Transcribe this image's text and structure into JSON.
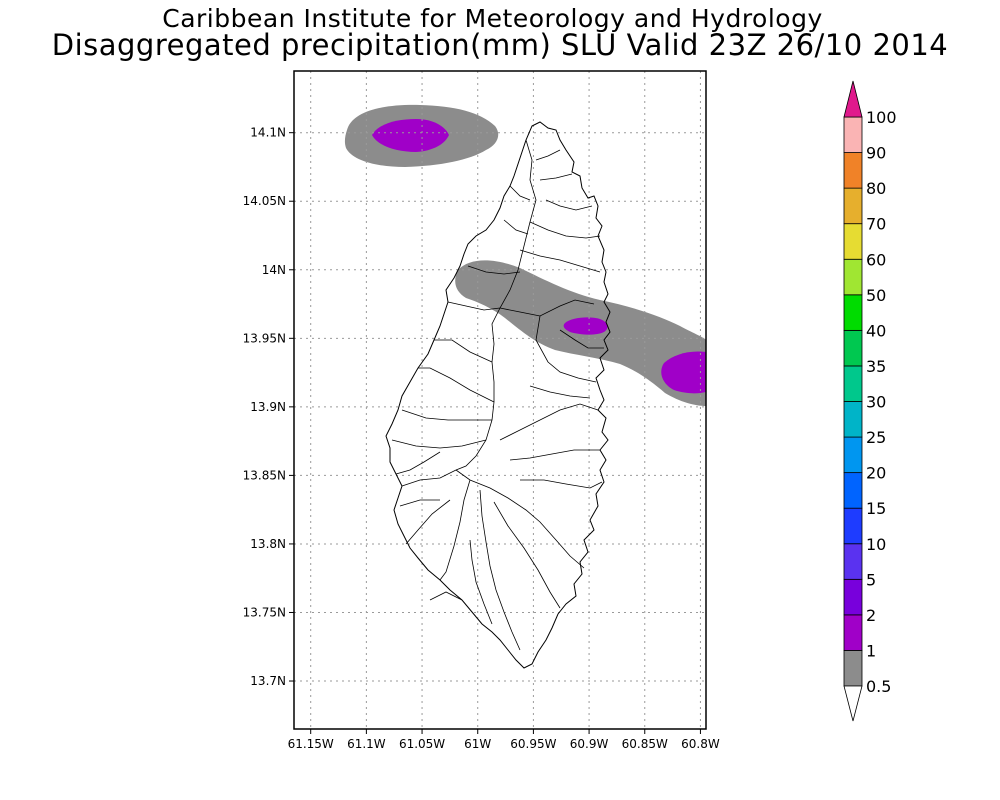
{
  "header": {
    "title": "Caribbean Institute for Meteorology and Hydrology",
    "subtitle": "Disaggregated precipitation(mm) SLU Valid 23Z 26/10 2014"
  },
  "map": {
    "lon_range": [
      -61.165,
      -60.795
    ],
    "lat_range": [
      13.665,
      14.145
    ],
    "lon_ticks": [
      {
        "value": -61.15,
        "label": "61.15W"
      },
      {
        "value": -61.1,
        "label": "61.1W"
      },
      {
        "value": -61.05,
        "label": "61.05W"
      },
      {
        "value": -61.0,
        "label": "61W"
      },
      {
        "value": -60.95,
        "label": "60.95W"
      },
      {
        "value": -60.9,
        "label": "60.9W"
      },
      {
        "value": -60.85,
        "label": "60.85W"
      },
      {
        "value": -60.8,
        "label": "60.8W"
      }
    ],
    "lat_ticks": [
      {
        "value": 14.1,
        "label": "14.1N"
      },
      {
        "value": 14.05,
        "label": "14.05N"
      },
      {
        "value": 14.0,
        "label": "14N"
      },
      {
        "value": 13.95,
        "label": "13.95N"
      },
      {
        "value": 13.9,
        "label": "13.9N"
      },
      {
        "value": 13.85,
        "label": "13.85N"
      },
      {
        "value": 13.8,
        "label": "13.8N"
      },
      {
        "value": 13.75,
        "label": "13.75N"
      },
      {
        "value": 13.7,
        "label": "13.7N"
      }
    ],
    "grid": true,
    "colors": {
      "grey": "#8c8c8c",
      "purple": "#a000c8",
      "land_outline": "#000000"
    }
  },
  "colorbar": {
    "levels": [
      "0.5",
      "1",
      "2",
      "5",
      "10",
      "15",
      "20",
      "25",
      "30",
      "35",
      "40",
      "50",
      "60",
      "70",
      "80",
      "90",
      "100"
    ],
    "colors": [
      "#8c8c8c",
      "#a000c8",
      "#7800dc",
      "#5a32f0",
      "#1e3cff",
      "#0064ff",
      "#0096f0",
      "#00b4c8",
      "#00c88c",
      "#00c850",
      "#00dc00",
      "#a0e632",
      "#e6dc32",
      "#e6af2d",
      "#f08228",
      "#fab4b4",
      "#fa0000",
      "#f03c3c"
    ],
    "top_color": "#e0198c",
    "bottom_color": "#ffffff"
  }
}
